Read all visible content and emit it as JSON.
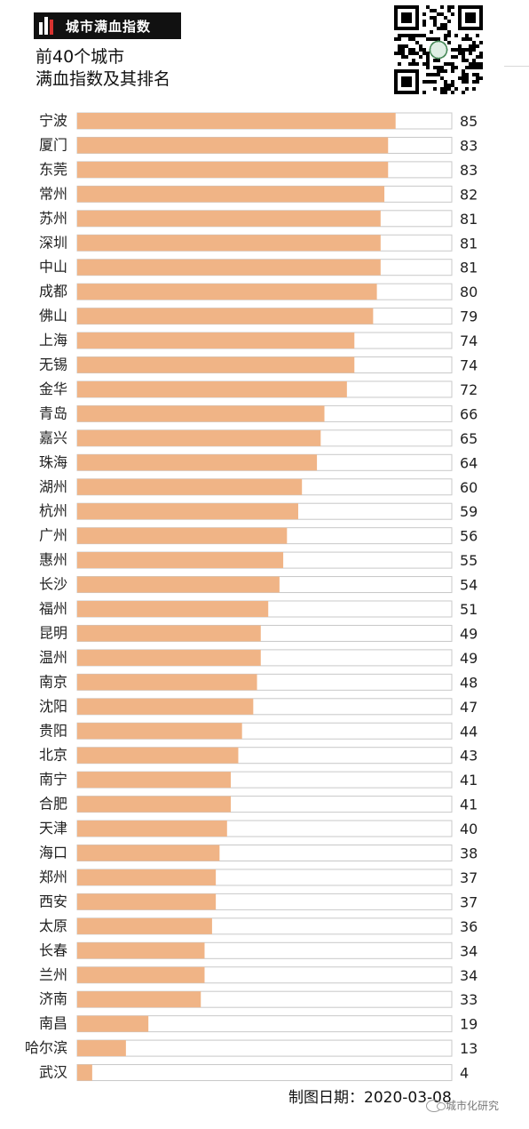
{
  "badge": {
    "text": "城市满血指数"
  },
  "header": {
    "title_line1": "前40个城市",
    "title_line2": "满血指数及其排名"
  },
  "footer": {
    "date_label": "制图日期：2020-03-08"
  },
  "watermark": {
    "text": "城市化研究"
  },
  "colors": {
    "bar_fill": "#f0b486",
    "bar_track": "#ffffff",
    "bar_border": "#c8c8c8",
    "badge_bg": "#111111",
    "badge_accent": "#d8322f"
  },
  "chart_data": {
    "type": "bar",
    "orientation": "horizontal",
    "title": "",
    "xlabel": "",
    "ylabel": "",
    "xlim": [
      0,
      100
    ],
    "grid": false,
    "categories": [
      "宁波",
      "厦门",
      "东莞",
      "常州",
      "苏州",
      "深圳",
      "中山",
      "成都",
      "佛山",
      "上海",
      "无锡",
      "金华",
      "青岛",
      "嘉兴",
      "珠海",
      "湖州",
      "杭州",
      "广州",
      "惠州",
      "长沙",
      "福州",
      "昆明",
      "温州",
      "南京",
      "沈阳",
      "贵阳",
      "北京",
      "南宁",
      "合肥",
      "天津",
      "海口",
      "郑州",
      "西安",
      "太原",
      "长春",
      "兰州",
      "济南",
      "南昌",
      "哈尔滨",
      "武汉"
    ],
    "values": [
      85,
      83,
      83,
      82,
      81,
      81,
      81,
      80,
      79,
      74,
      74,
      72,
      66,
      65,
      64,
      60,
      59,
      56,
      55,
      54,
      51,
      49,
      49,
      48,
      47,
      44,
      43,
      41,
      41,
      40,
      38,
      37,
      37,
      36,
      34,
      34,
      33,
      19,
      13,
      4
    ]
  }
}
